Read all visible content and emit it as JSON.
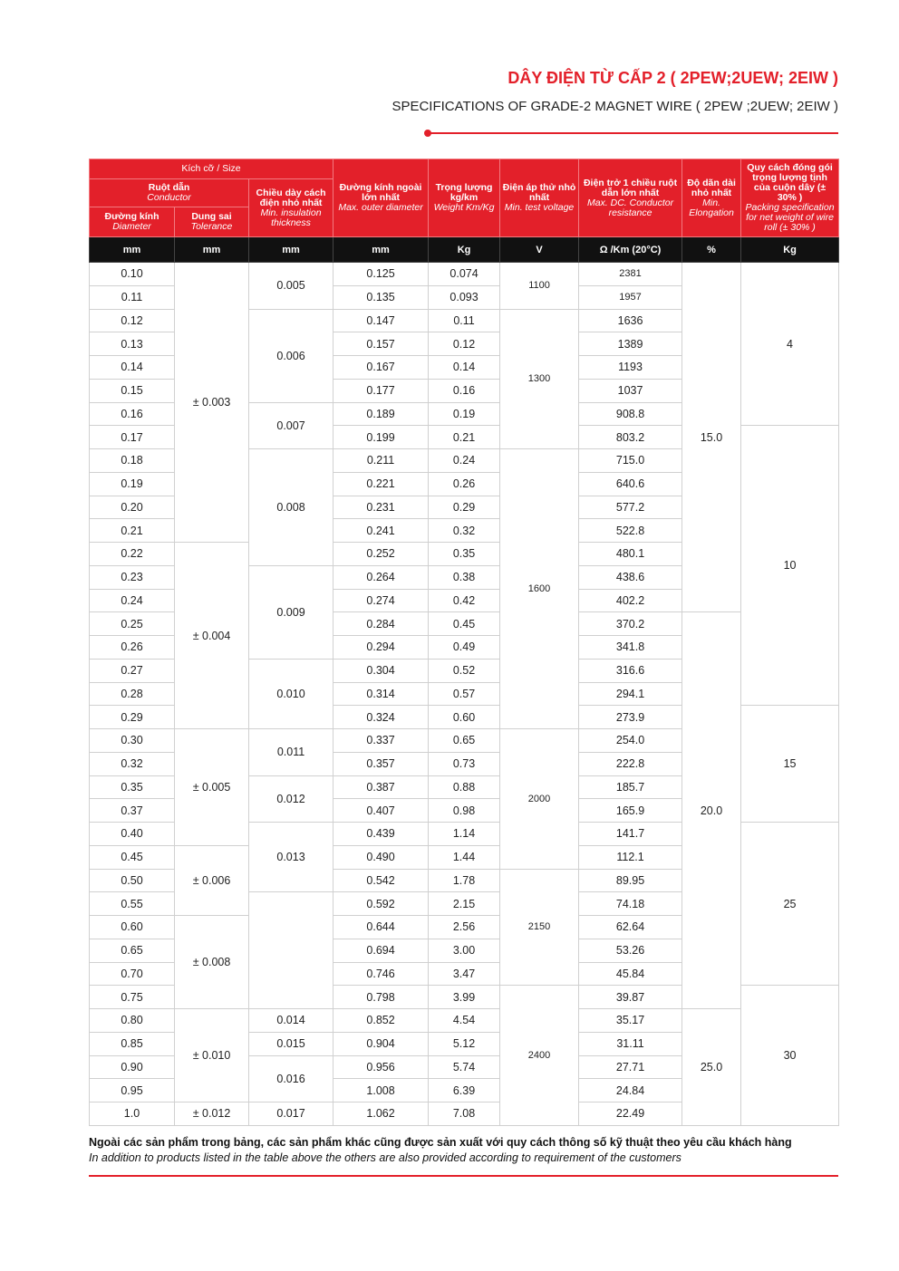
{
  "header": {
    "title": "DÂY ĐIỆN TỪ CẤP 2 ( 2PEW;2UEW; 2EIW )",
    "subtitle": "SPECIFICATIONS OF GRADE-2 MAGNET WIRE ( 2PEW ;2UEW; 2EIW )"
  },
  "table": {
    "head": {
      "size": "Kích cỡ / Size",
      "conductor": {
        "vi": "Ruột dẫn",
        "en": "Conductor"
      },
      "diameter": {
        "vi": "Đường kính",
        "en": "Diameter"
      },
      "tolerance": {
        "vi": "Dung sai",
        "en": "Tolerance"
      },
      "insulation": {
        "vi": "Chiều dày cách điện nhỏ nhất",
        "en": "Min. insulation thickness"
      },
      "outer": {
        "vi": "Đường kính ngoài lớn nhất",
        "en": "Max. outer diameter"
      },
      "weight": {
        "vi": "Trọng lượng kg/km",
        "en": "Weight Km/Kg"
      },
      "voltage": {
        "vi": "Điện áp thử nhỏ nhất",
        "en": "Min. test voltage"
      },
      "resistance": {
        "vi": "Điện trở 1 chiều ruột dẫn lớn nhất",
        "en": "Max. DC. Conductor resistance"
      },
      "elongation": {
        "vi": "Độ dãn dài nhỏ nhất",
        "en": "Min. Elongation"
      },
      "packing": {
        "vi": "Quy cách đóng gói trọng lượng tịnh của cuộn dây (± 30% )",
        "en": "Packing specification for net weight of wire roll (± 30% )"
      }
    },
    "units": [
      "mm",
      "mm",
      "mm",
      "mm",
      "Kg",
      "V",
      "Ω /Km (20°C)",
      "%",
      "Kg"
    ],
    "columns": {
      "diameter": [
        "0.10",
        "0.11",
        "0.12",
        "0.13",
        "0.14",
        "0.15",
        "0.16",
        "0.17",
        "0.18",
        "0.19",
        "0.20",
        "0.21",
        "0.22",
        "0.23",
        "0.24",
        "0.25",
        "0.26",
        "0.27",
        "0.28",
        "0.29",
        "0.30",
        "0.32",
        "0.35",
        "0.37",
        "0.40",
        "0.45",
        "0.50",
        "0.55",
        "0.60",
        "0.65",
        "0.70",
        "0.75",
        "0.80",
        "0.85",
        "0.90",
        "0.95",
        "1.0"
      ],
      "tolerance": [
        "± 0.003",
        "± 0.004",
        "± 0.005",
        "± 0.006",
        "± 0.008",
        "± 0.010",
        "± 0.012"
      ],
      "insulation": [
        "0.005",
        "0.006",
        "0.007",
        "0.008",
        "0.009",
        "0.010",
        "0.011",
        "0.012",
        "0.013",
        null,
        "0.014",
        "0.015",
        "0.016",
        "0.017"
      ],
      "outer": [
        "0.125",
        "0.135",
        "0.147",
        "0.157",
        "0.167",
        "0.177",
        "0.189",
        "0.199",
        "0.211",
        "0.221",
        "0.231",
        "0.241",
        "0.252",
        "0.264",
        "0.274",
        "0.284",
        "0.294",
        "0.304",
        "0.314",
        "0.324",
        "0.337",
        "0.357",
        "0.387",
        "0.407",
        "0.439",
        "0.490",
        "0.542",
        "0.592",
        "0.644",
        "0.694",
        "0.746",
        "0.798",
        "0.852",
        "0.904",
        "0.956",
        "1.008",
        "1.062"
      ],
      "weight": [
        "0.074",
        "0.093",
        "0.11",
        "0.12",
        "0.14",
        "0.16",
        "0.19",
        "0.21",
        "0.24",
        "0.26",
        "0.29",
        "0.32",
        "0.35",
        "0.38",
        "0.42",
        "0.45",
        "0.49",
        "0.52",
        "0.57",
        "0.60",
        "0.65",
        "0.73",
        "0.88",
        "0.98",
        "1.14",
        "1.44",
        "1.78",
        "2.15",
        "2.56",
        "3.00",
        "3.47",
        "3.99",
        "4.54",
        "5.12",
        "5.74",
        "6.39",
        "7.08"
      ],
      "voltage": [
        "1100",
        "1300",
        "1600",
        "2000",
        "2150",
        "2400"
      ],
      "resistance": [
        "2381",
        "1957",
        "1636",
        "1389",
        "1193",
        "1037",
        "908.8",
        "803.2",
        "715.0",
        "640.6",
        "577.2",
        "522.8",
        "480.1",
        "438.6",
        "402.2",
        "370.2",
        "341.8",
        "316.6",
        "294.1",
        "273.9",
        "254.0",
        "222.8",
        "185.7",
        "165.9",
        "141.7",
        "112.1",
        "89.95",
        "74.18",
        "62.64",
        "53.26",
        "45.84",
        "39.87",
        "35.17",
        "31.11",
        "27.71",
        "24.84",
        "22.49"
      ],
      "elongation": [
        "15.0",
        "20.0",
        "25.0"
      ],
      "packing": [
        "4",
        "10",
        "15",
        "25",
        "30"
      ]
    }
  },
  "notes": {
    "vi": "Ngoài các sản phẩm trong bảng, các sản phẩm khác cũng được sản xuất với quy cách thông số kỹ thuật  theo yêu cầu khách hàng",
    "en": "In addition to products listed in the table above the others are also provided according to requirement of the customers"
  }
}
